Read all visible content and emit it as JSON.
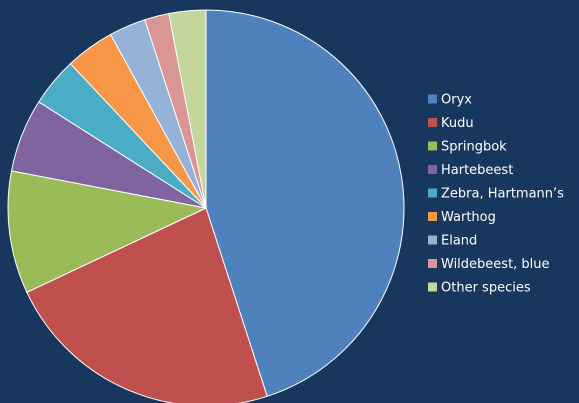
{
  "chart_data": {
    "type": "pie",
    "categories": [
      "Oryx",
      "Kudu",
      "Springbok",
      "Hartebeest",
      "Zebra, Hartmann’s",
      "Warthog",
      "Eland",
      "Wildebeest, blue",
      "Other species"
    ],
    "values": [
      45,
      23,
      10,
      6,
      4,
      4,
      3,
      2,
      3
    ],
    "colors": [
      "#4f81bd",
      "#c0504d",
      "#9bbb59",
      "#8064a2",
      "#4bacc6",
      "#f79646",
      "#95b3d7",
      "#d99694",
      "#c3d69b"
    ],
    "legend": "right"
  }
}
